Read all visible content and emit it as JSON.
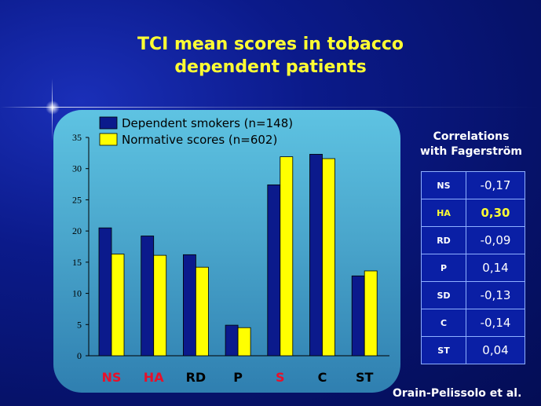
{
  "chart_data": {
    "type": "bar",
    "title": "TCI mean scores in tobacco\ndependent patients",
    "title_lines": [
      "TCI mean scores in tobacco",
      "dependent patients"
    ],
    "categories": [
      "NS",
      "HA",
      "RD",
      "P",
      "S",
      "C",
      "ST"
    ],
    "category_colors": [
      "#e8102a",
      "#e8102a",
      "#000000",
      "#000000",
      "#e8102a",
      "#000000",
      "#000000"
    ],
    "series": [
      {
        "name": "Dependent smokers (n=148)",
        "color": "#0b1a8c",
        "values": [
          20.5,
          19.2,
          16.2,
          4.9,
          27.4,
          32.3,
          12.8
        ]
      },
      {
        "name": "Normative scores (n=602)",
        "color": "#ffff00",
        "values": [
          16.3,
          16.1,
          14.2,
          4.5,
          31.9,
          31.6,
          13.6
        ]
      }
    ],
    "ylim": [
      0,
      35
    ],
    "yticks": [
      0,
      5,
      10,
      15,
      20,
      25,
      30,
      35
    ],
    "legend_placement": "top-left",
    "grid": false
  },
  "correlations": {
    "title_line1": "Correlations",
    "title_line2": "with Fagerström",
    "rows": [
      {
        "key": "NS",
        "value": "-0,17",
        "highlight": false
      },
      {
        "key": "HA",
        "value": "0,30",
        "highlight": true
      },
      {
        "key": "RD",
        "value": "-0,09",
        "highlight": false
      },
      {
        "key": "P",
        "value": "0,14",
        "highlight": false
      },
      {
        "key": "SD",
        "value": "-0,13",
        "highlight": false
      },
      {
        "key": "C",
        "value": "-0,14",
        "highlight": false
      },
      {
        "key": "ST",
        "value": "0,04",
        "highlight": false
      }
    ]
  },
  "author": "Orain-Pelissolo et al.",
  "colors": {
    "title": "#ffff33",
    "highlight": "#ffff33"
  }
}
